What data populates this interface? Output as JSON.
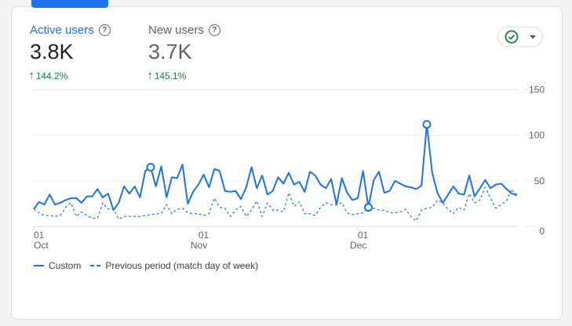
{
  "metrics": [
    {
      "label": "Active users",
      "value": "3.8K",
      "delta": "144.2%",
      "color": "#1a73e8",
      "value_color": "#202124"
    },
    {
      "label": "New users",
      "value": "3.7K",
      "delta": "145.1%",
      "color": "#5f6368",
      "value_color": "#5f6368"
    }
  ],
  "toggle": {
    "icon": "check-circle-icon",
    "menu_icon": "caret-down-icon"
  },
  "chart_data": {
    "type": "line",
    "x_start": "Oct 1",
    "x_end": "Dec 31",
    "x_ticks": [
      {
        "day": "01",
        "month": "Oct",
        "index": 0
      },
      {
        "day": "01",
        "month": "Nov",
        "index": 31
      },
      {
        "day": "01",
        "month": "Dec",
        "index": 61
      }
    ],
    "y_ticks": [
      "0",
      "50",
      "100",
      "150"
    ],
    "ylim": [
      0,
      150
    ],
    "grid": true,
    "legend_position": "bottom-left",
    "series": [
      {
        "name": "Custom",
        "style": "solid",
        "color": "#1a73e8",
        "highlight_indices": [
          22,
          63,
          74
        ],
        "values": [
          19,
          27,
          24,
          35,
          24,
          26,
          29,
          31,
          31,
          26,
          33,
          33,
          41,
          32,
          36,
          18,
          26,
          44,
          36,
          44,
          32,
          61,
          65,
          44,
          66,
          32,
          54,
          53,
          68,
          25,
          38,
          46,
          57,
          43,
          63,
          61,
          39,
          38,
          39,
          30,
          43,
          65,
          42,
          56,
          35,
          39,
          54,
          47,
          59,
          46,
          49,
          38,
          60,
          56,
          46,
          42,
          52,
          24,
          53,
          37,
          29,
          31,
          61,
          21,
          51,
          60,
          37,
          39,
          50,
          47,
          44,
          43,
          41,
          45,
          112,
          59,
          37,
          26,
          35,
          44,
          36,
          35,
          56,
          33,
          42,
          51,
          42,
          46,
          47,
          41,
          36,
          35
        ]
      },
      {
        "name": "Previous period (match day of week)",
        "style": "dashed",
        "color": "#1a73e8",
        "values": [
          19,
          15,
          12,
          12,
          11,
          12,
          21,
          26,
          11,
          16,
          12,
          9,
          9,
          26,
          19,
          19,
          8,
          11,
          11,
          11,
          11,
          12,
          13,
          14,
          14,
          24,
          14,
          19,
          20,
          15,
          14,
          14,
          12,
          14,
          31,
          21,
          20,
          11,
          18,
          22,
          11,
          18,
          28,
          11,
          26,
          18,
          18,
          16,
          37,
          22,
          27,
          14,
          14,
          12,
          21,
          26,
          24,
          24,
          26,
          15,
          13,
          14,
          15,
          21,
          20,
          18,
          18,
          15,
          15,
          16,
          19,
          11,
          6,
          18,
          20,
          21,
          29,
          26,
          19,
          14,
          21,
          18,
          36,
          26,
          29,
          43,
          31,
          20,
          24,
          28,
          41,
          31
        ]
      }
    ]
  }
}
